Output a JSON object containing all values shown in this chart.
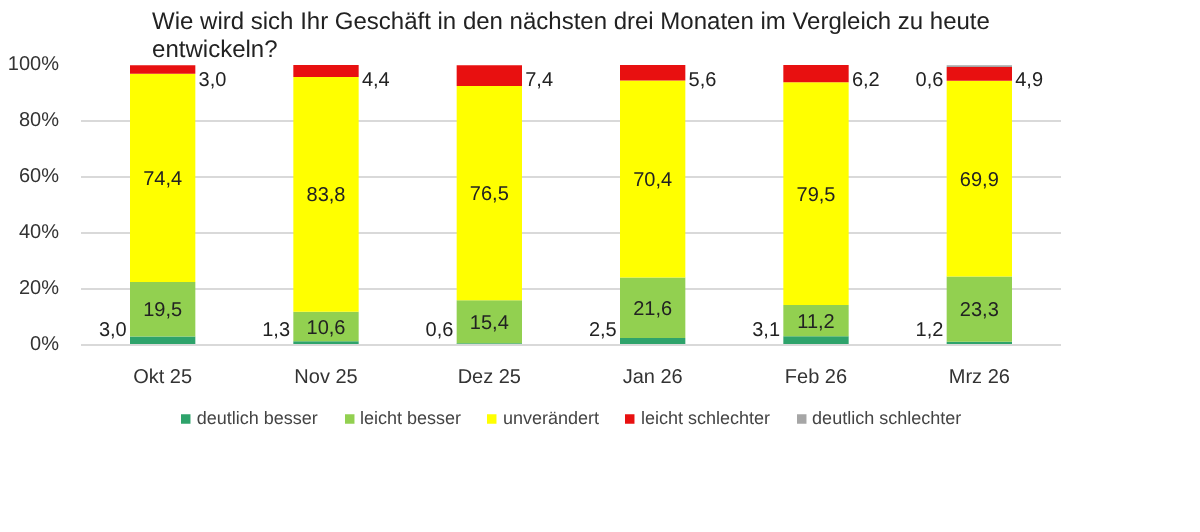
{
  "chart_data": {
    "type": "bar",
    "stacked": true,
    "title": "Wie wird sich Ihr Geschäft in den nächsten drei Monaten im Vergleich zu heute entwickeln?",
    "categories": [
      "Okt 25",
      "Nov 25",
      "Dez 25",
      "Jan 26",
      "Feb 26",
      "Mrz 26"
    ],
    "series": [
      {
        "name": "deutlich besser",
        "color": "#2ea36b",
        "values": [
          3.0,
          1.3,
          0.6,
          2.5,
          3.1,
          1.2
        ],
        "value_labels": [
          "3,0",
          "1,3",
          "0,6",
          "2,5",
          "3,1",
          "1,2"
        ]
      },
      {
        "name": "leicht besser",
        "color": "#92d050",
        "values": [
          19.5,
          10.6,
          15.4,
          21.6,
          11.2,
          23.3
        ],
        "value_labels": [
          "19,5",
          "10,6",
          "15,4",
          "21,6",
          "11,2",
          "23,3"
        ]
      },
      {
        "name": "unverändert",
        "color": "#ffff00",
        "values": [
          74.4,
          83.8,
          76.5,
          70.4,
          79.5,
          69.9
        ],
        "value_labels": [
          "74,4",
          "83,8",
          "76,5",
          "70,4",
          "79,5",
          "69,9"
        ]
      },
      {
        "name": "leicht schlechter",
        "color": "#e81010",
        "values": [
          3.0,
          4.4,
          7.4,
          5.6,
          6.2,
          4.9
        ],
        "value_labels": [
          "3,0",
          "4,4",
          "7,4",
          "5,6",
          "6,2",
          "4,9"
        ]
      },
      {
        "name": "deutlich schlechter",
        "color": "#a6a6a6",
        "values": [
          null,
          null,
          null,
          null,
          null,
          0.6
        ],
        "value_labels": [
          null,
          null,
          null,
          null,
          null,
          "0,6"
        ]
      }
    ],
    "ylim": [
      0,
      100
    ],
    "yticks": [
      {
        "value": 0,
        "label": "0%"
      },
      {
        "value": 20,
        "label": "20%"
      },
      {
        "value": 40,
        "label": "40%"
      },
      {
        "value": 60,
        "label": "60%"
      },
      {
        "value": 80,
        "label": "80%"
      },
      {
        "value": 100,
        "label": "100%"
      }
    ],
    "grid": "y",
    "legend": "bottom"
  }
}
